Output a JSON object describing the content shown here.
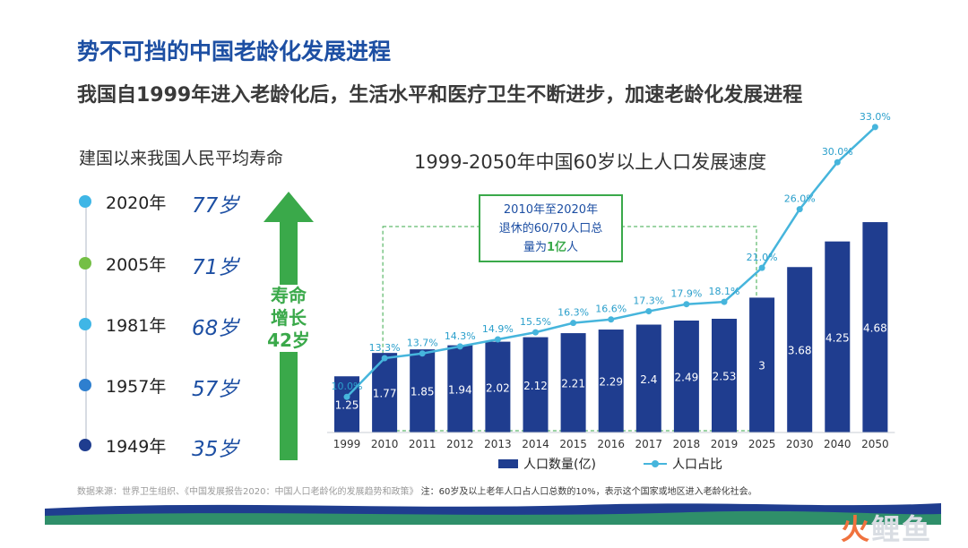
{
  "header": {
    "title": "势不可挡的中国老龄化发展进程",
    "subtitle": "我国自1999年进入老龄化后，生活水平和医疗卫生不断进步，加速老龄化发展进程"
  },
  "life_expectancy": {
    "heading": "建国以来我国人民平均寿命",
    "items": [
      {
        "year": "2020年",
        "age": "77岁",
        "color": "#3fb6e6"
      },
      {
        "year": "2005年",
        "age": "71岁",
        "color": "#74bf45"
      },
      {
        "year": "1981年",
        "age": "68岁",
        "color": "#3fb6e6"
      },
      {
        "year": "1957年",
        "age": "57岁",
        "color": "#2e7fcf"
      },
      {
        "year": "1949年",
        "age": "35岁",
        "color": "#1f3d8f"
      }
    ],
    "arrow_label": [
      "寿命",
      "增长",
      "42岁"
    ],
    "arrow_color": "#3aa94a"
  },
  "chart_data": {
    "type": "bar",
    "title": "1999-2050年中国60岁以上人口发展速度",
    "categories": [
      "1999",
      "2010",
      "2011",
      "2012",
      "2013",
      "2014",
      "2015",
      "2016",
      "2017",
      "2018",
      "2019",
      "2025",
      "2030",
      "2040",
      "2050"
    ],
    "series": [
      {
        "name": "人口数量(亿)",
        "type": "bar",
        "color": "#1f3d8f",
        "values": [
          1.25,
          1.77,
          1.85,
          1.94,
          2.02,
          2.12,
          2.21,
          2.29,
          2.4,
          2.49,
          2.53,
          3,
          3.68,
          4.25,
          4.68
        ],
        "labels": [
          "1.25",
          "1.77",
          "1.85",
          "1.94",
          "2.02",
          "2.12",
          "2.21",
          "2.29",
          "2.4",
          "2.49",
          "2.53",
          "3",
          "3.68",
          "4.25",
          "4.68"
        ]
      },
      {
        "name": "人口占比",
        "type": "line",
        "color": "#46b5dc",
        "values": [
          10.0,
          13.3,
          13.7,
          14.3,
          14.9,
          15.5,
          16.3,
          16.6,
          17.3,
          17.9,
          18.1,
          21.0,
          26.0,
          30.0,
          33.0
        ],
        "labels": [
          "10.0%",
          "13.3%",
          "13.7%",
          "14.3%",
          "14.9%",
          "15.5%",
          "16.3%",
          "16.6%",
          "17.3%",
          "17.9%",
          "18.1%",
          "21.0%",
          "26.0%",
          "30.0%",
          "33.0%"
        ]
      }
    ],
    "annotation": {
      "lines": [
        "2010年至2020年",
        "退休的60/70人口总",
        "量为",
        "1亿",
        "人"
      ],
      "highlight_color": "#3aa94a",
      "range": [
        "2010",
        "2019"
      ]
    },
    "legend": "bottom"
  },
  "source": {
    "text": "数据来源：世界卫生组织、《中国发展报告2020：中国人口老龄化的发展趋势和政策》",
    "note": "注：60岁及以上老年人口占人口总数的10%，表示这个国家或地区进入老龄化社会。"
  },
  "watermark": {
    "first": "火",
    "rest": "鲤鱼"
  }
}
